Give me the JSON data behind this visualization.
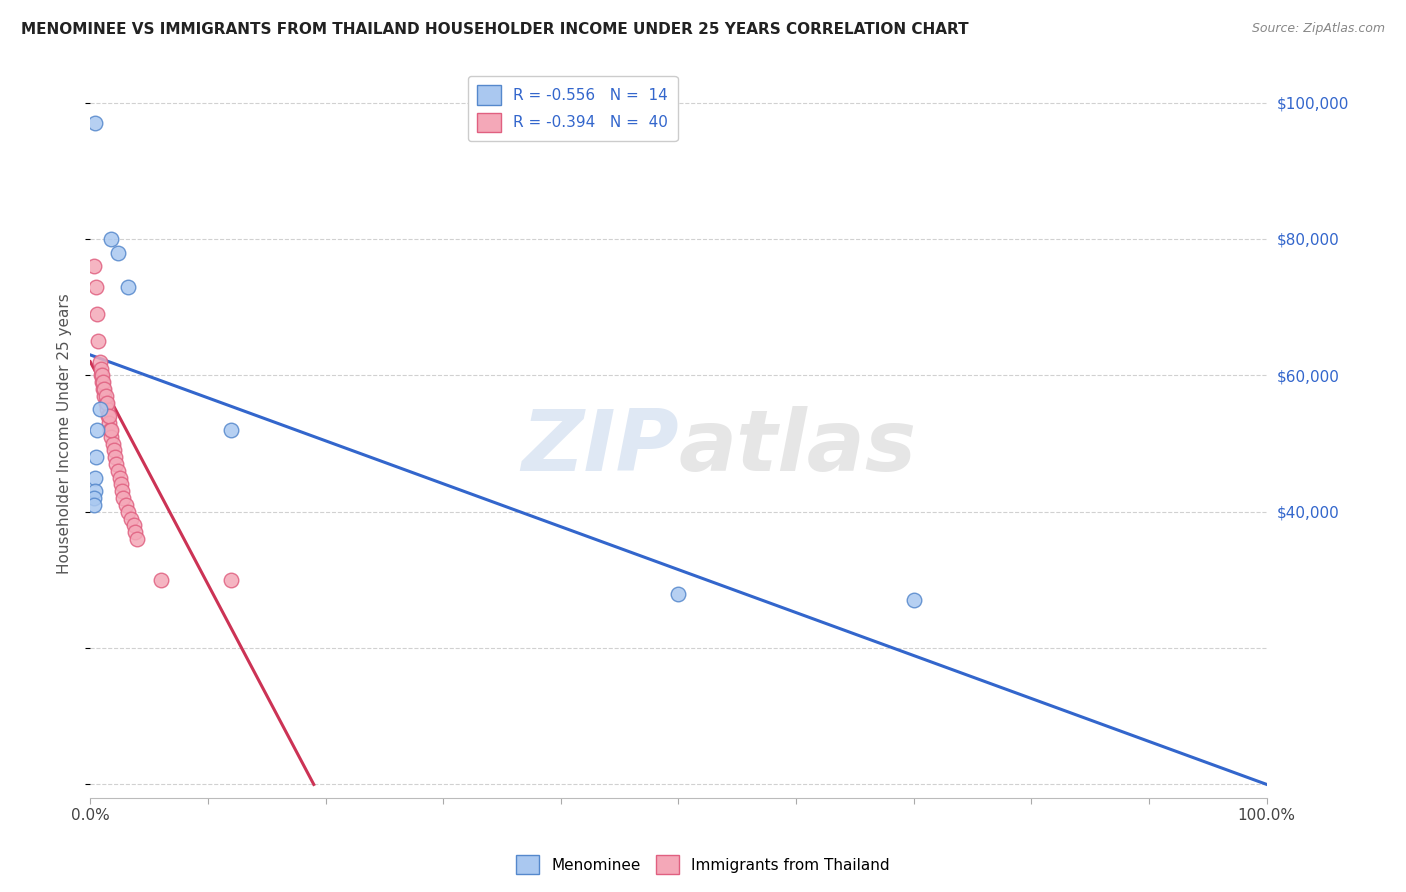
{
  "title": "MENOMINEE VS IMMIGRANTS FROM THAILAND HOUSEHOLDER INCOME UNDER 25 YEARS CORRELATION CHART",
  "source": "Source: ZipAtlas.com",
  "ylabel": "Householder Income Under 25 years",
  "yticks": [
    0,
    20000,
    40000,
    60000,
    80000,
    100000
  ],
  "ytick_right_labels": [
    "",
    "",
    "$40,000",
    "$60,000",
    "$80,000",
    "$100,000"
  ],
  "xticks": [
    0.0,
    0.1,
    0.2,
    0.3,
    0.4,
    0.5,
    0.6,
    0.7,
    0.8,
    0.9,
    1.0
  ],
  "xlim": [
    0.0,
    1.0
  ],
  "ylim": [
    -2000,
    105000
  ],
  "menominee_color": "#aac8f0",
  "thailand_color": "#f4a8b8",
  "menominee_edge": "#5588cc",
  "thailand_edge": "#e06080",
  "line_blue": "#3366cc",
  "line_pink": "#cc3355",
  "menominee_label": "Menominee",
  "thailand_label": "Immigrants from Thailand",
  "watermark_zip": "ZIP",
  "watermark_atlas": "atlas",
  "background_color": "#ffffff",
  "grid_color": "#cccccc",
  "title_color": "#222222",
  "axis_label_color": "#555555",
  "right_tick_color": "#3366cc",
  "legend_text_color": "#3366cc",
  "menominee_x": [
    0.004,
    0.018,
    0.024,
    0.032,
    0.008,
    0.006,
    0.005,
    0.004,
    0.004,
    0.003,
    0.003,
    0.5,
    0.7,
    0.12
  ],
  "menominee_y": [
    97000,
    80000,
    78000,
    73000,
    55000,
    52000,
    48000,
    45000,
    43000,
    42000,
    41000,
    28000,
    27000,
    52000
  ],
  "thailand_x": [
    0.003,
    0.005,
    0.006,
    0.007,
    0.008,
    0.009,
    0.01,
    0.011,
    0.012,
    0.013,
    0.014,
    0.015,
    0.016,
    0.017,
    0.018,
    0.019,
    0.02,
    0.021,
    0.022,
    0.024,
    0.025,
    0.026,
    0.027,
    0.028,
    0.03,
    0.032,
    0.035,
    0.037,
    0.038,
    0.04,
    0.009,
    0.01,
    0.011,
    0.012,
    0.013,
    0.014,
    0.016,
    0.018,
    0.06,
    0.12
  ],
  "thailand_y": [
    76000,
    73000,
    69000,
    65000,
    62000,
    60000,
    59000,
    58000,
    57000,
    56000,
    55000,
    54000,
    53000,
    52000,
    51000,
    50000,
    49000,
    48000,
    47000,
    46000,
    45000,
    44000,
    43000,
    42000,
    41000,
    40000,
    39000,
    38000,
    37000,
    36000,
    61000,
    60000,
    59000,
    58000,
    57000,
    56000,
    54000,
    52000,
    30000,
    30000
  ],
  "blue_line_x": [
    0.0,
    1.0
  ],
  "blue_line_y": [
    63000,
    0
  ],
  "pink_line_x": [
    0.0,
    0.19
  ],
  "pink_line_y": [
    62000,
    0
  ]
}
